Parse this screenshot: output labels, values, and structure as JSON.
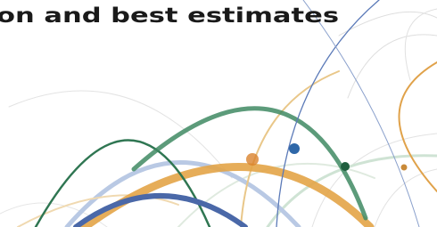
{
  "header": {
    "title": "on and best estimates"
  }
}
